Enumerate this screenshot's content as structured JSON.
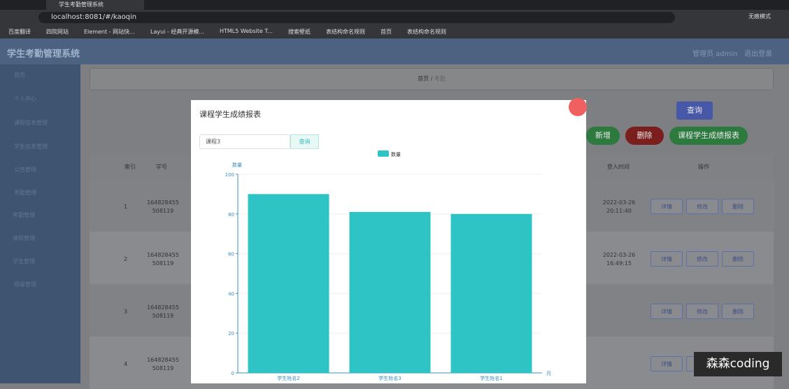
{
  "browser": {
    "tab_title": "学生考勤管理系统",
    "url": "localhost:8081/#/kaoqin",
    "profile": "无痕模式",
    "bookmarks": [
      "百度翻译",
      "四院网站",
      "Element - 网站快...",
      "Layui - 经典开源模...",
      "HTML5 Website T...",
      "搜索壁纸",
      "表结构命名规则",
      "首页",
      "表结构命名规则"
    ]
  },
  "app": {
    "title": "学生考勤管理系统",
    "user": "管理员 admin",
    "logout": "退出登录",
    "menu": [
      "首页",
      "个人中心",
      "课程信息管理",
      "学生信息管理",
      "公告管理",
      "考勤管理",
      "考勤管理",
      "请假管理",
      "学生管理",
      "班级管理"
    ],
    "breadcrumb": [
      "首页",
      "考勤"
    ]
  },
  "toolbar": {
    "search": "查询",
    "add": "新增",
    "delete": "删除",
    "report": "课程学生成绩报表"
  },
  "table": {
    "headers": [
      "索引",
      "学号",
      "登入时间",
      "操作"
    ],
    "rows": [
      [
        "1",
        "164828455508119",
        "2022-03-26 20:11:40"
      ],
      [
        "2",
        "164828455508119",
        "2022-03-26 16:49:15"
      ],
      [
        "3",
        "164828455508119"
      ],
      [
        "4",
        "164828455508119"
      ]
    ],
    "actions": [
      "详情",
      "修改",
      "删除"
    ]
  },
  "modal": {
    "title": "课程学生成绩报表",
    "select": "课程3",
    "button": "查询"
  },
  "chart_data": {
    "type": "bar",
    "legend": "数量",
    "y_label": "数量",
    "x_label": "月",
    "categories": [
      "学生姓名2",
      "学生姓名3",
      "学生姓名1"
    ],
    "series": [
      {
        "name": "数量",
        "color": "#2ec4c6",
        "values": [
          90,
          81,
          80
        ]
      }
    ],
    "ylim": [
      0,
      100
    ],
    "yticks": [
      0,
      20,
      40,
      60,
      80,
      100
    ],
    "grid": true
  },
  "watermark": "森森coding"
}
